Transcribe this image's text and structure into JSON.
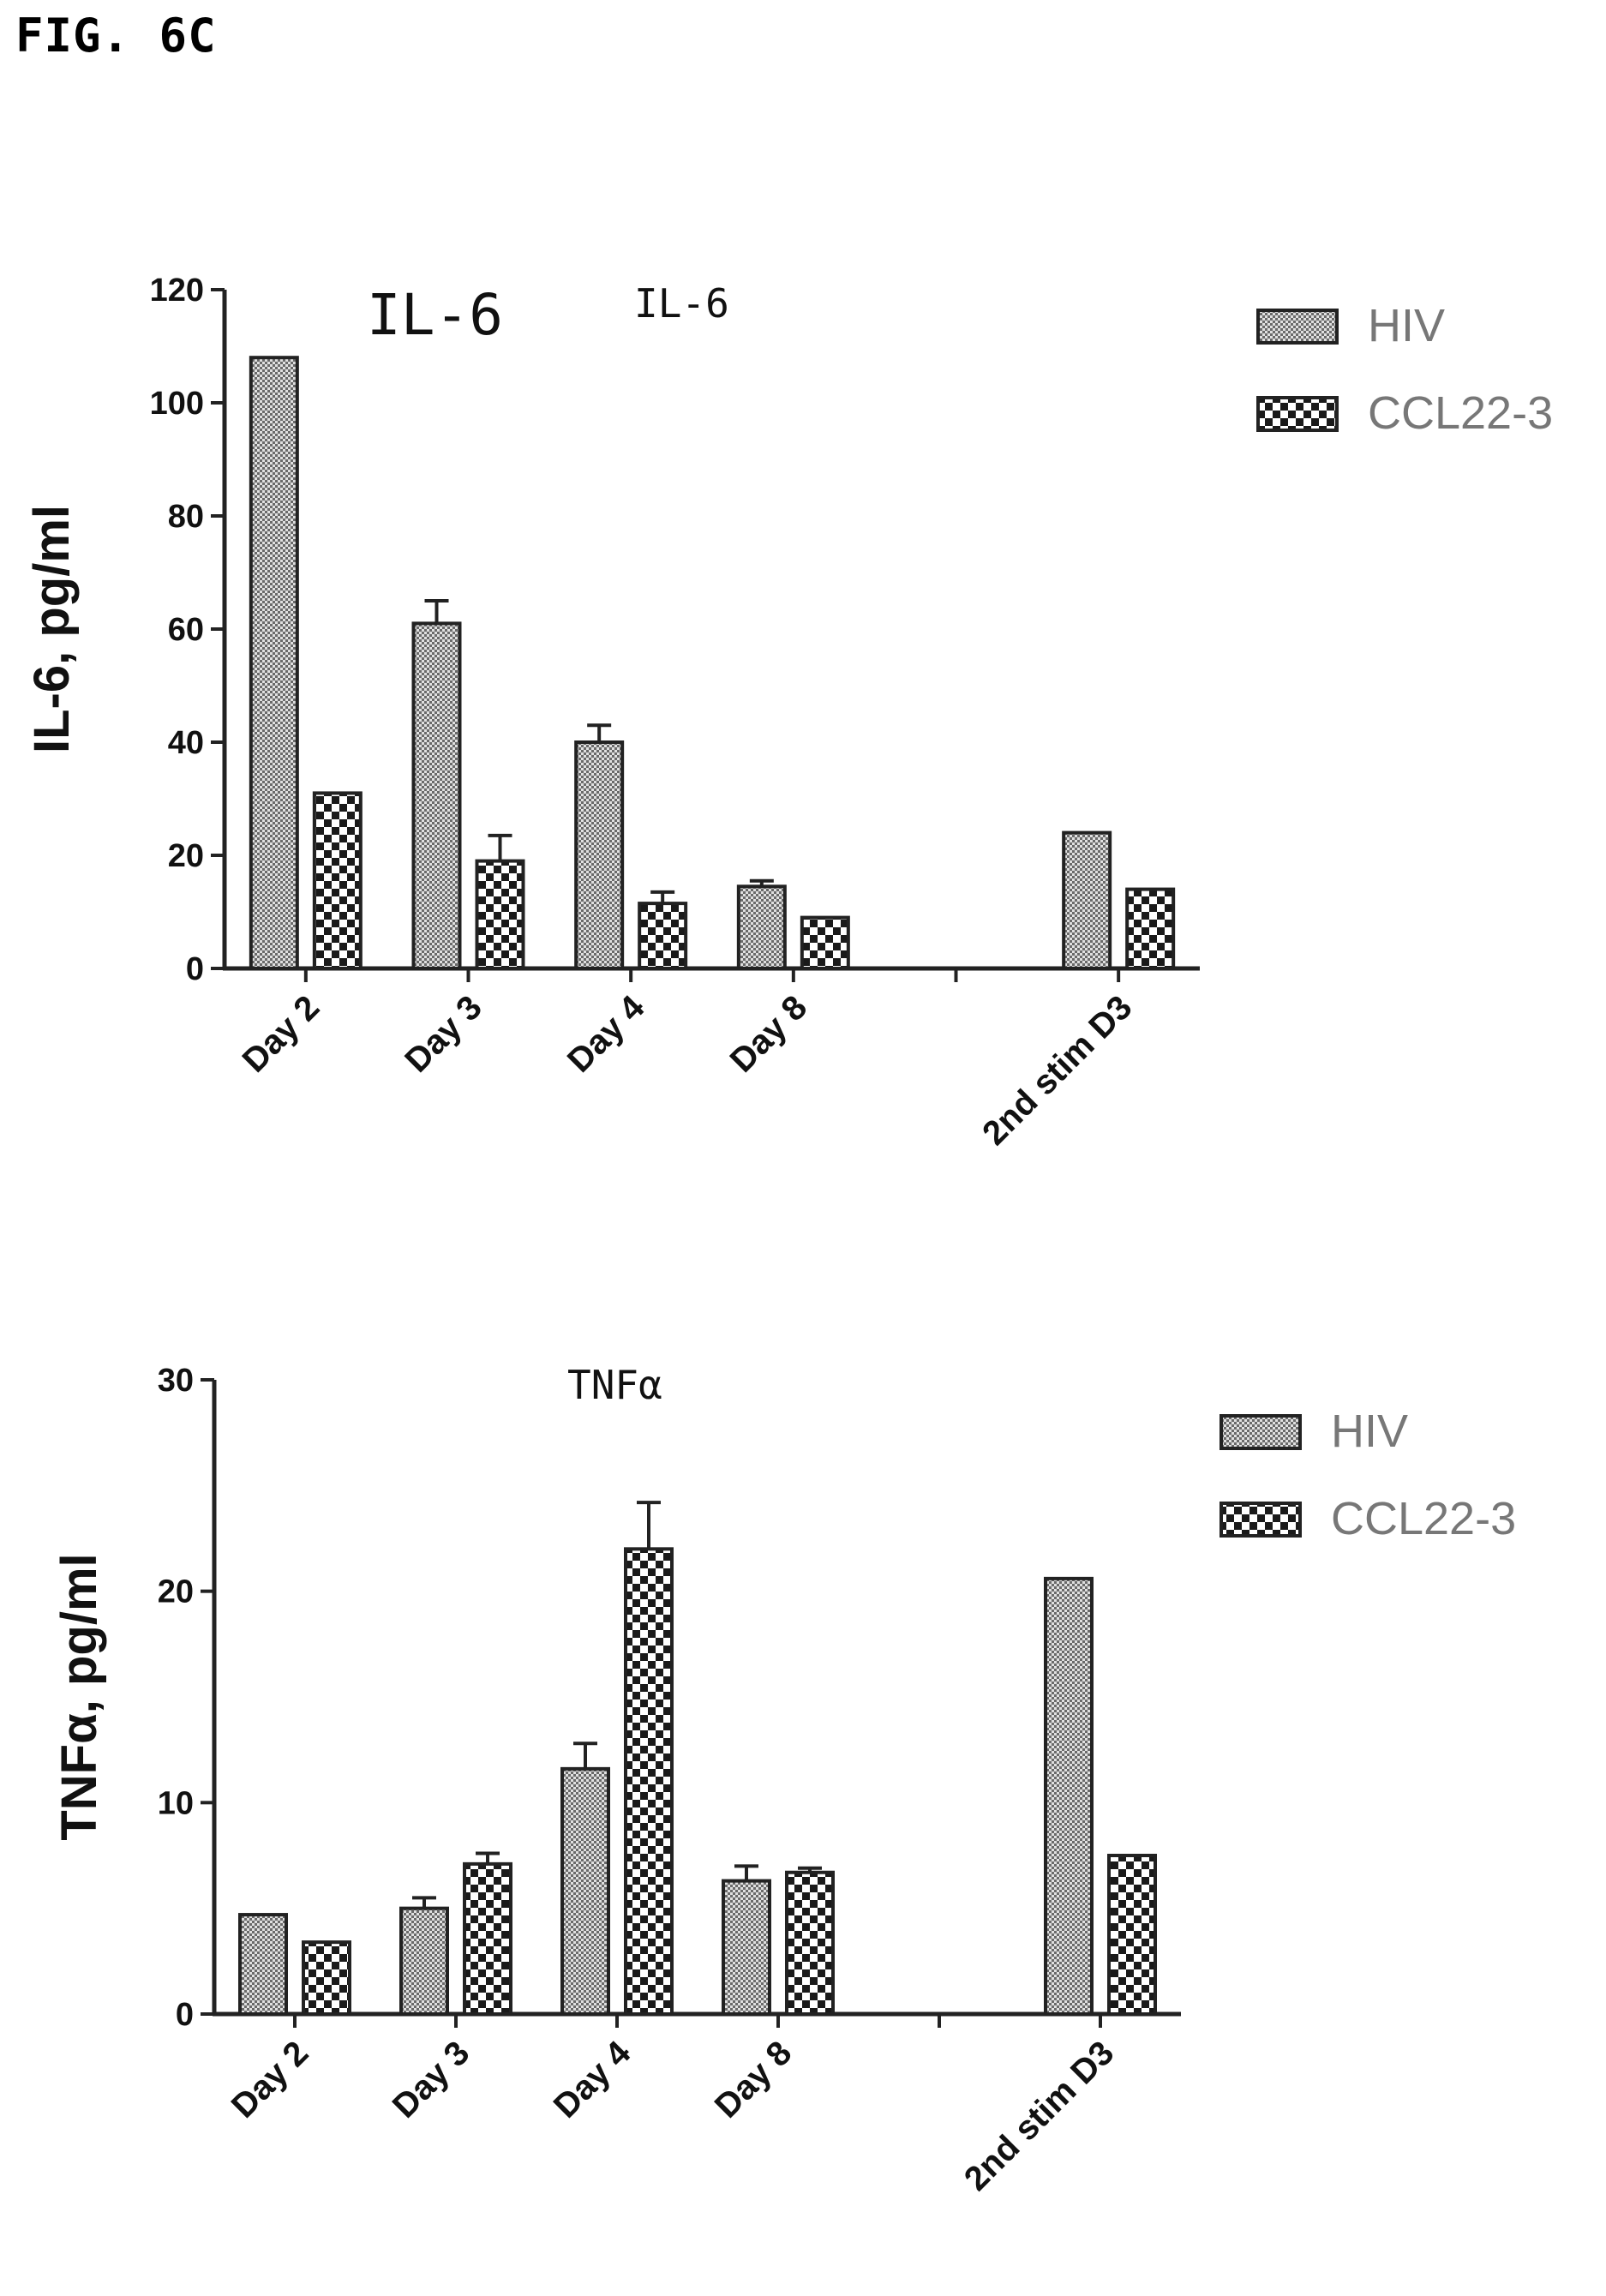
{
  "figure_label": "FIG. 6C",
  "colors": {
    "axis": "#222222",
    "bar_outline": "#222222",
    "pattern_dark": "#6a6a6a",
    "pattern_light": "#e0e0e0",
    "legend_text": "#777777"
  },
  "chart_data": [
    {
      "type": "bar",
      "titles": [
        "IL-6",
        "IL-6"
      ],
      "ylabel": "IL-6, pg/ml",
      "xlabel": "",
      "ylim": [
        0,
        120
      ],
      "yticks": [
        0,
        20,
        40,
        60,
        80,
        100,
        120
      ],
      "categories": [
        "Day 2",
        "Day 3",
        "Day 4",
        "Day 8",
        "",
        "2nd stim D3"
      ],
      "legend_position": "top-right",
      "series": [
        {
          "name": "HIV",
          "pattern": "stipple",
          "values": [
            108,
            61,
            40,
            14.5,
            null,
            24
          ],
          "errors": [
            0,
            4,
            3,
            1,
            null,
            0
          ]
        },
        {
          "name": "CCL22-3",
          "pattern": "checker",
          "values": [
            31,
            19,
            11.5,
            9,
            null,
            14
          ],
          "errors": [
            0,
            4.5,
            2,
            0,
            null,
            0
          ]
        }
      ]
    },
    {
      "type": "bar",
      "titles": [
        "TNFα"
      ],
      "ylabel": "TNFα, pg/ml",
      "xlabel": "",
      "ylim": [
        0,
        30
      ],
      "yticks": [
        0,
        10,
        20,
        30
      ],
      "categories": [
        "Day 2",
        "Day 3",
        "Day 4",
        "Day 8",
        "",
        "2nd stim D3"
      ],
      "legend_position": "top-right",
      "series": [
        {
          "name": "HIV",
          "pattern": "stipple",
          "values": [
            4.7,
            5.0,
            11.6,
            6.3,
            null,
            20.6
          ],
          "errors": [
            0,
            0.5,
            1.2,
            0.7,
            null,
            0
          ]
        },
        {
          "name": "CCL22-3",
          "pattern": "checker",
          "values": [
            3.4,
            7.1,
            22.0,
            6.7,
            null,
            7.5
          ],
          "errors": [
            0,
            0.5,
            2.2,
            0.2,
            null,
            0
          ]
        }
      ]
    }
  ]
}
